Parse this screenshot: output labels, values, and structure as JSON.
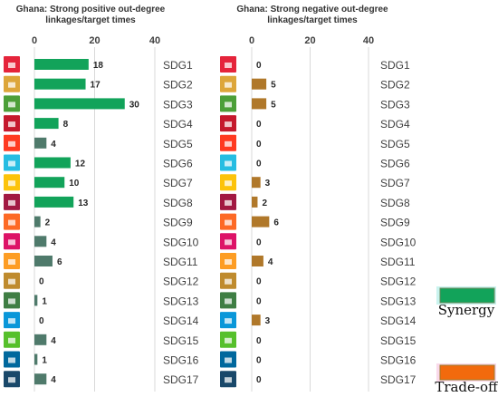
{
  "chart_data": [
    {
      "type": "bar",
      "orientation": "horizontal",
      "title": "Ghana: Strong positive out-degree linkages/target times",
      "title_lines": [
        "Ghana: Strong positive out-degree",
        "linkages/target times"
      ],
      "categories": [
        "SDG1",
        "SDG2",
        "SDG3",
        "SDG4",
        "SDG5",
        "SDG6",
        "SDG7",
        "SDG8",
        "SDG9",
        "SDG10",
        "SDG11",
        "SDG12",
        "SDG13",
        "SDG14",
        "SDG15",
        "SDG16",
        "SDG17"
      ],
      "values": [
        18,
        17,
        30,
        8,
        4,
        12,
        10,
        13,
        2,
        4,
        6,
        0,
        1,
        0,
        4,
        1,
        4
      ],
      "xlim": [
        0,
        40
      ],
      "xticks": [
        "0",
        "20",
        "40"
      ],
      "bar_color": "#12a35a",
      "bar_tint_color": "#4f7a6b",
      "grid": true
    },
    {
      "type": "bar",
      "orientation": "horizontal",
      "title": "Ghana: Strong negative out-degree linkages/target times",
      "title_lines": [
        "Ghana: Strong negative out-degree",
        "linkages/target times"
      ],
      "categories": [
        "SDG1",
        "SDG2",
        "SDG3",
        "SDG4",
        "SDG5",
        "SDG6",
        "SDG7",
        "SDG8",
        "SDG9",
        "SDG10",
        "SDG11",
        "SDG12",
        "SDG13",
        "SDG14",
        "SDG15",
        "SDG16",
        "SDG17"
      ],
      "values": [
        0,
        5,
        5,
        0,
        0,
        0,
        3,
        2,
        6,
        0,
        4,
        0,
        0,
        3,
        0,
        0,
        0
      ],
      "xlim": [
        0,
        40
      ],
      "xticks": [
        "0",
        "20",
        "40"
      ],
      "bar_color": "#f26a0d",
      "bar_tint_color": "#b0782a",
      "grid": true
    }
  ],
  "legend": [
    {
      "label": "Synergy",
      "color": "#12a35a"
    },
    {
      "label": "Trade-off",
      "color": "#f26a0d"
    }
  ],
  "sdg_icon_colors": [
    "#e5243b",
    "#dda63a",
    "#4c9f38",
    "#c5192d",
    "#ff3a21",
    "#26bde2",
    "#fcc30b",
    "#a21942",
    "#fd6925",
    "#dd1367",
    "#fd9d24",
    "#bf8b2e",
    "#3f7e44",
    "#0a97d9",
    "#56c02b",
    "#00689d",
    "#19486a"
  ]
}
